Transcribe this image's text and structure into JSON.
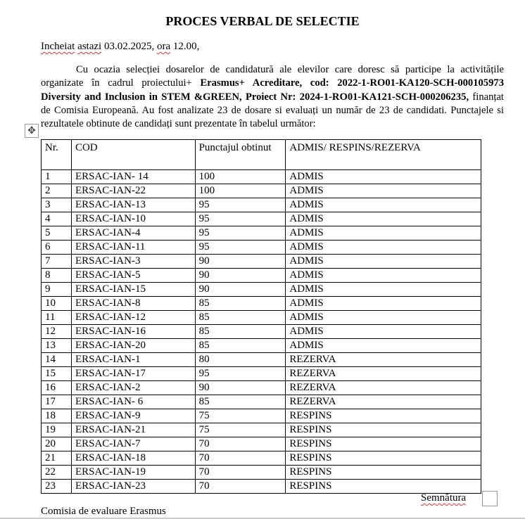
{
  "title": "PROCES VERBAL DE SELECTIE",
  "intro": {
    "a": "Incheiat",
    "b": "astazi",
    "c": " 03.02.2025, ",
    "d": "ora",
    "e": " 12.00,"
  },
  "paragraph": {
    "p1": "Cu ocazia selecției dosarelor de candidatură ale elevilor care doresc să participe la activitățile organizate în cadrul proiectului+ ",
    "b1": "Erasmus+ Acreditare, cod: 2022-1-RO01-KA120-SCH-000105973 Diversity and Inclusion in STEM &GREEN, Proiect Nr: 2024-1-RO01-KA121-SCH-000206235,",
    "p2": " finanțat de Comisia Europeană. Au fost analizate 23 de dosare si evaluați un număr de 23 de candidati. Punctajele si rezultatele obtinute de candidați sunt prezentate în tabelul următor:"
  },
  "table": {
    "headers": [
      "Nr.",
      "COD",
      "Punctajul obtinut",
      "ADMIS/ RESPINS/REZERVA"
    ],
    "rows": [
      [
        "1",
        "ERSAC-IAN- 14",
        "100",
        "ADMIS"
      ],
      [
        "2",
        "ERSAC-IAN-22",
        "100",
        "ADMIS"
      ],
      [
        "3",
        "ERSAC-IAN-13",
        "95",
        "ADMIS"
      ],
      [
        "4",
        "ERSAC-IAN-10",
        "95",
        "ADMIS"
      ],
      [
        "5",
        "ERSAC-IAN-4",
        "95",
        "ADMIS"
      ],
      [
        "6",
        "ERSAC-IAN-11",
        "95",
        "ADMIS"
      ],
      [
        "7",
        "ERSAC-IAN-3",
        "90",
        "ADMIS"
      ],
      [
        "8",
        "ERSAC-IAN-5",
        "90",
        "ADMIS"
      ],
      [
        "9",
        "ERSAC-IAN-15",
        "90",
        "ADMIS"
      ],
      [
        "10",
        "ERSAC-IAN-8",
        "85",
        "ADMIS"
      ],
      [
        "11",
        "ERSAC-IAN-12",
        "85",
        "ADMIS"
      ],
      [
        "12",
        "ERSAC-IAN-16",
        "85",
        "ADMIS"
      ],
      [
        "13",
        "ERSAC-IAN-20",
        "85",
        "ADMIS"
      ],
      [
        "14",
        "ERSAC-IAN-1",
        "80",
        "REZERVA"
      ],
      [
        "15",
        "ERSAC-IAN-17",
        "95",
        "REZERVA"
      ],
      [
        "16",
        "ERSAC-IAN-2",
        "90",
        "REZERVA"
      ],
      [
        "17",
        "ERSAC-IAN- 6",
        "85",
        "REZERVA"
      ],
      [
        "18",
        "ERSAC-IAN-9",
        "75",
        "RESPINS"
      ],
      [
        "19",
        "ERSAC-IAN-21",
        "75",
        "RESPINS"
      ],
      [
        "20",
        "ERSAC-IAN-7",
        "70",
        "RESPINS"
      ],
      [
        "21",
        "ERSAC-IAN-18",
        "70",
        "RESPINS"
      ],
      [
        "22",
        "ERSAC-IAN-19",
        "70",
        "RESPINS"
      ],
      [
        "23",
        "ERSAC-IAN-23",
        "70",
        "RESPINS"
      ]
    ]
  },
  "signature": "Semnătura",
  "committee": "Comisia de evaluare Erasmus",
  "icons": {
    "table_move": "move-arrows-icon"
  }
}
